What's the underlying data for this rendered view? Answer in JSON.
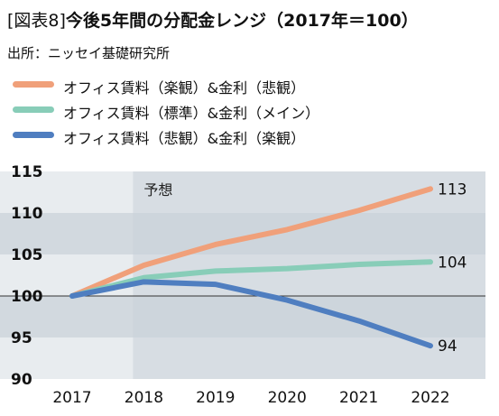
{
  "header": {
    "figure_label": "[図表8]",
    "title": "今後5年間の分配金レンジ（2017年＝100）",
    "source": "出所：ニッセイ基礎研究所"
  },
  "colors": {
    "series_colors": [
      "#f0a07a",
      "#88cdb8",
      "#4f7ec0"
    ],
    "band_light": "#e8ecef",
    "band_dark": "#d2d9df",
    "forecast_overlay": "#c9d1d8"
  },
  "chart_data": {
    "type": "line",
    "x": [
      "2017",
      "2018",
      "2019",
      "2020",
      "2021",
      "2022"
    ],
    "series": [
      {
        "name": "オフィス賃料（楽観）&金利（悲観）",
        "values": [
          100,
          103.7,
          106.2,
          108.0,
          110.3,
          112.9
        ]
      },
      {
        "name": "オフィス賃料（標準）&金利（メイン）",
        "values": [
          100,
          102.2,
          103.0,
          103.3,
          103.8,
          104.1
        ]
      },
      {
        "name": "オフィス賃料（悲観）&金利（楽観）",
        "values": [
          100,
          101.7,
          101.4,
          99.5,
          97.0,
          94.0
        ]
      }
    ],
    "y_ticks": [
      "115",
      "110",
      "105",
      "100",
      "95",
      "90"
    ],
    "ylim": [
      90,
      115
    ],
    "forecast_label": "予想",
    "forecast_start": "2018",
    "end_labels": [
      "113",
      "104",
      "94"
    ],
    "grid": false,
    "legend_position": "top-left"
  }
}
